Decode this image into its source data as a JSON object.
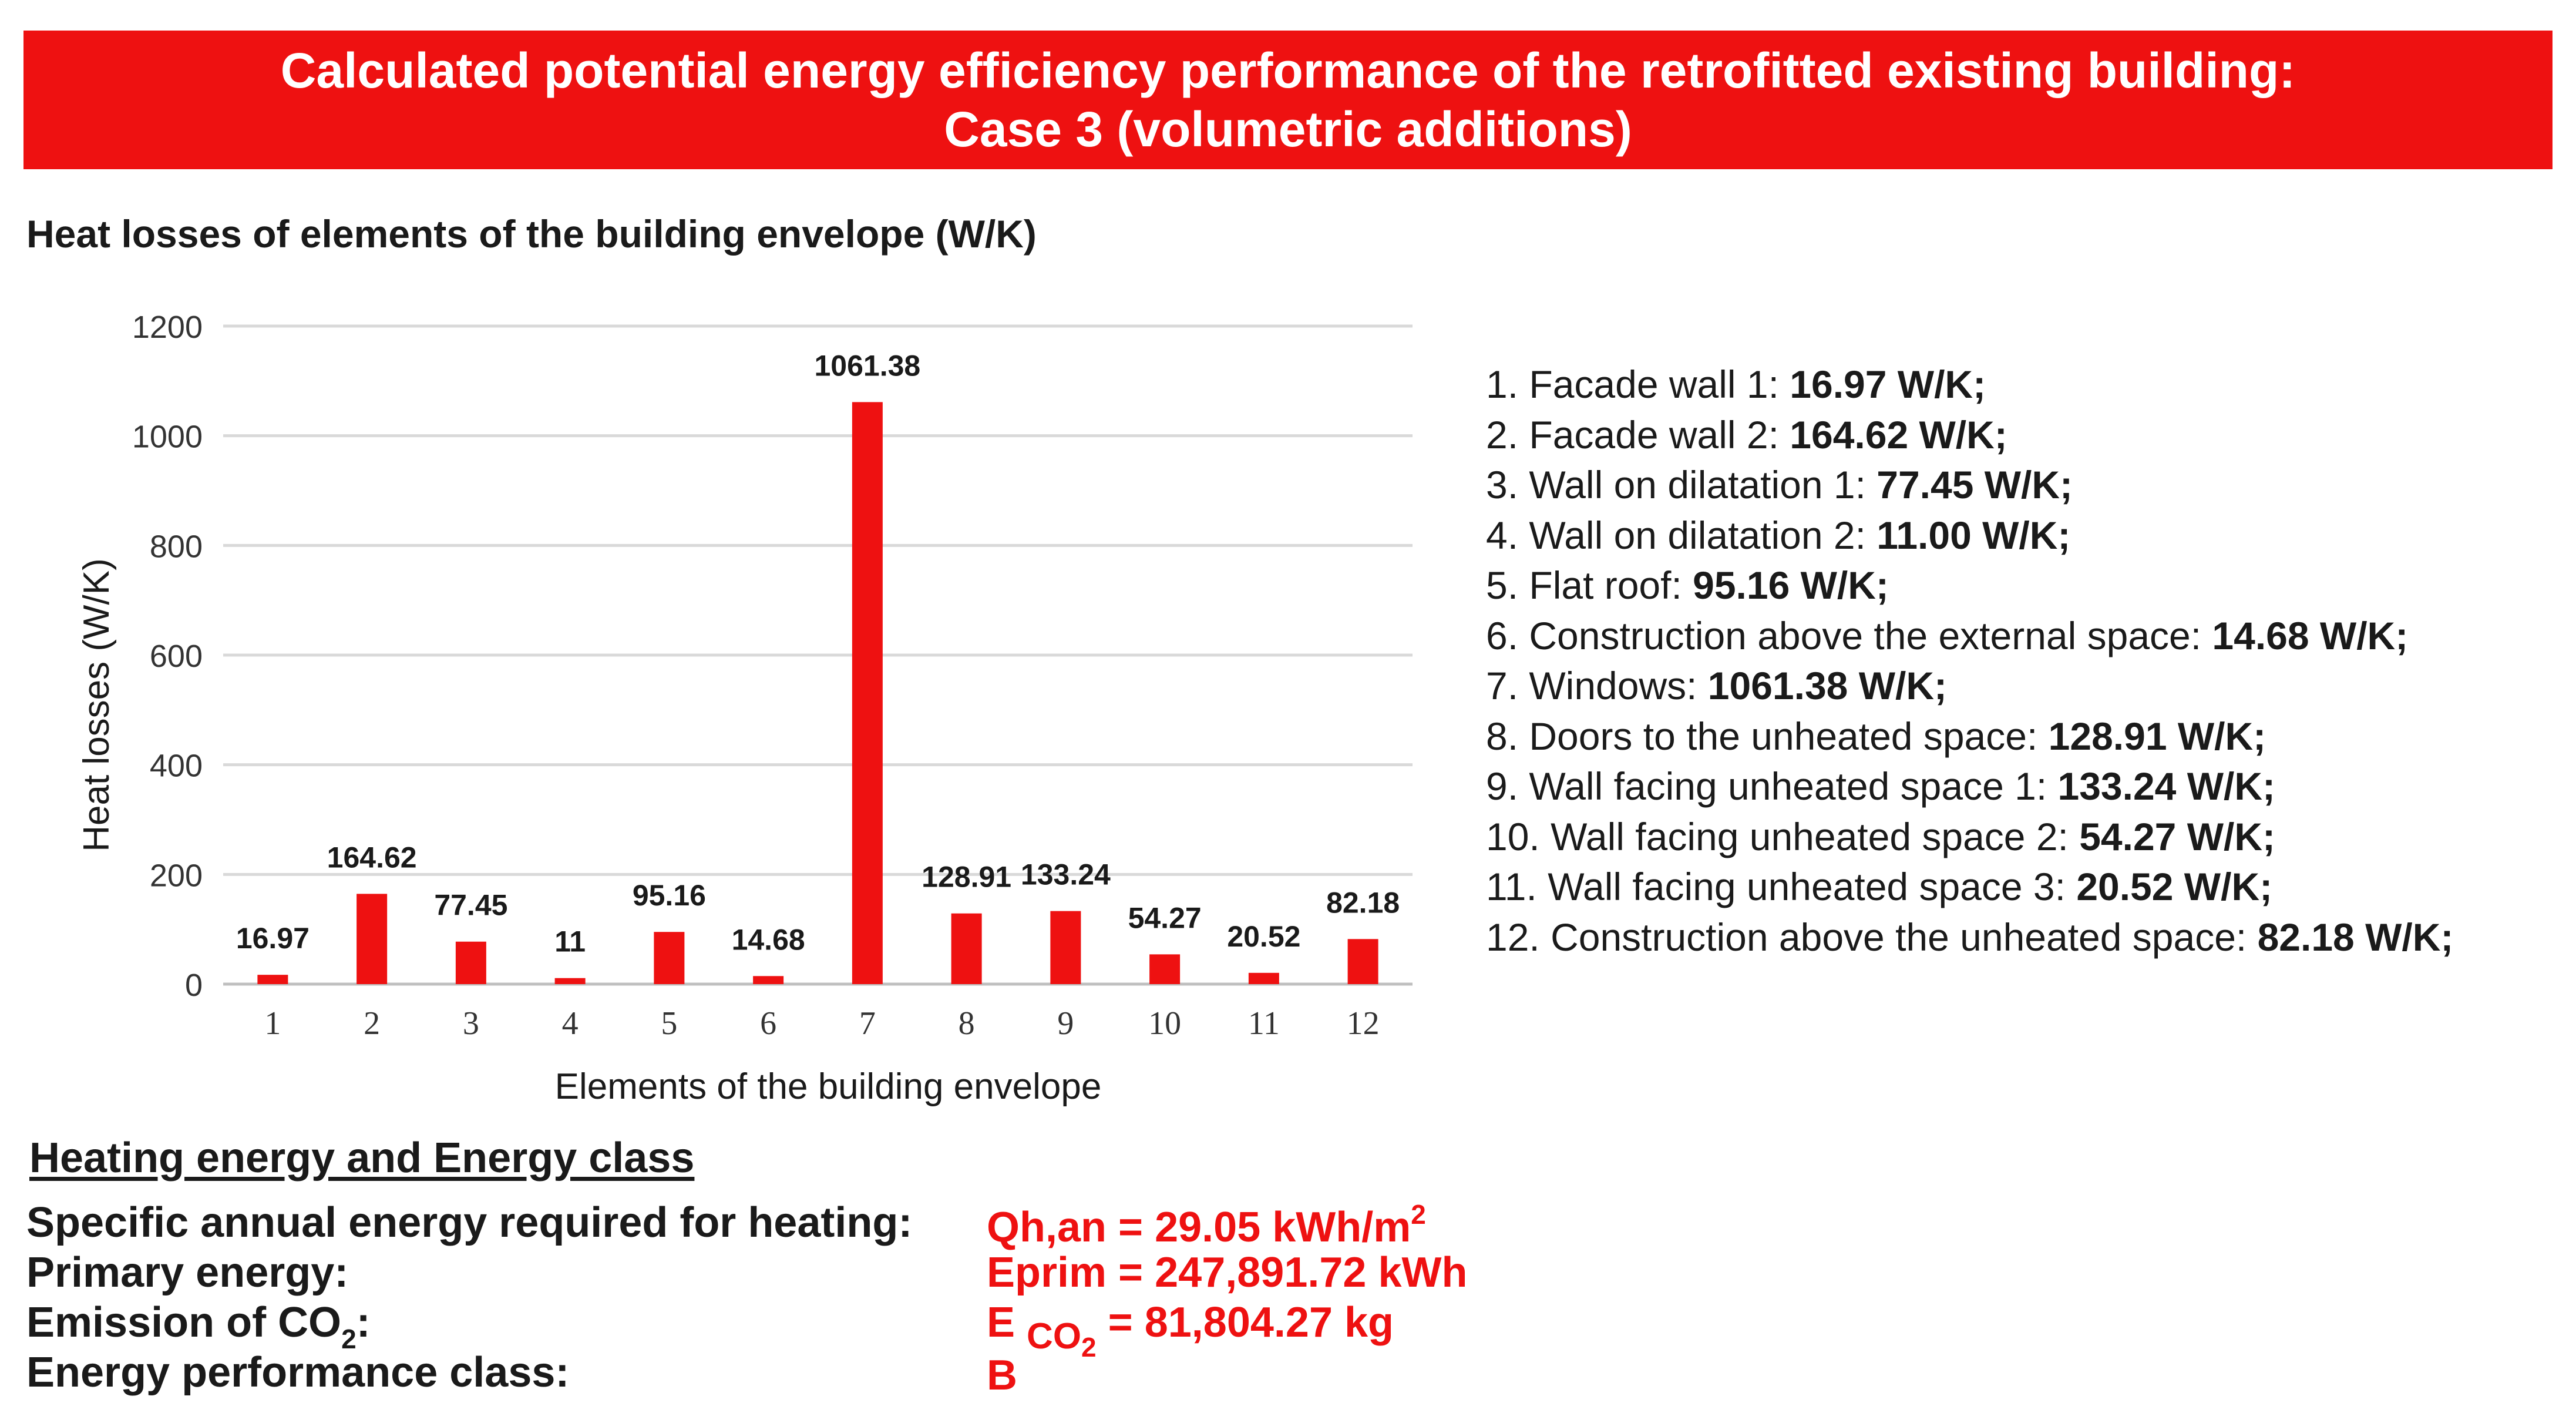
{
  "banner": {
    "line1": "Calculated potential energy efficiency performance of the retrofitted existing building:",
    "line2": "Case 3 (volumetric additions)"
  },
  "chart_section_title": "Heat losses of elements of the building envelope (W/K)",
  "chart_data": {
    "type": "bar",
    "title": "Heat losses of elements of the building envelope (W/K)",
    "xlabel": "Elements of the building envelope",
    "ylabel": "Heat losses (W/K)",
    "categories": [
      "1",
      "2",
      "3",
      "4",
      "5",
      "6",
      "7",
      "8",
      "9",
      "10",
      "11",
      "12"
    ],
    "values": [
      16.97,
      164.62,
      77.45,
      11,
      95.16,
      14.68,
      1061.38,
      128.91,
      133.24,
      54.27,
      20.52,
      82.18
    ],
    "data_labels": [
      "16.97",
      "164.62",
      "77.45",
      "11",
      "95.16",
      "14.68",
      "1061.38",
      "128.91",
      "133.24",
      "54.27",
      "20.52",
      "82.18"
    ],
    "ylim": [
      0,
      1200
    ],
    "yticks": [
      0,
      200,
      400,
      600,
      800,
      1000,
      1200
    ],
    "ytick_labels": [
      "0",
      "200",
      "400",
      "600",
      "800",
      "1000",
      "1200"
    ],
    "grid": true,
    "bar_color": "#ee1111"
  },
  "legend": [
    {
      "label": "1. Facade wall 1: ",
      "value": "16.97 W/K;"
    },
    {
      "label": "2. Facade wall 2: ",
      "value": "164.62 W/K;"
    },
    {
      "label": "3. Wall on dilatation 1: ",
      "value": "77.45 W/K;"
    },
    {
      "label": "4. Wall on dilatation 2: ",
      "value": "11.00 W/K;"
    },
    {
      "label": "5. Flat roof: ",
      "value": "95.16 W/K;"
    },
    {
      "label": "6. Construction above the external space: ",
      "value": "14.68 W/K;"
    },
    {
      "label": "7. Windows:  ",
      "value": "1061.38 W/K;"
    },
    {
      "label": "8. Doors to the unheated space: ",
      "value": "128.91 W/K;"
    },
    {
      "label": "9. Wall facing unheated space 1: ",
      "value": "133.24 W/K;"
    },
    {
      "label": "10. Wall facing unheated space 2: ",
      "value": "54.27 W/K;"
    },
    {
      "label": "11. Wall facing unheated space 3: ",
      "value": "20.52 W/K;"
    },
    {
      "label": "12. Construction above the unheated space: ",
      "value": "82.18 W/K;"
    }
  ],
  "energy": {
    "title": "Heating energy and Energy class",
    "heating_label": "Specific annual energy required for heating:",
    "heating_value": "Qh,an = 29.05 kWh/m",
    "heating_sup": "2",
    "primary_label": "Primary energy:",
    "primary_value": "Eprim = 247,891.72 kWh",
    "co2_label_pre": "Emission of CO",
    "co2_label_sub": "2",
    "co2_label_post": ":",
    "co2_value_e": "E",
    "co2_value_co": "CO",
    "co2_value_sub": "2",
    "co2_value_rest": " = 81,804.27 kg",
    "class_label": "Energy performance class:",
    "class_value": "B"
  },
  "colors": {
    "accent": "#ee1111",
    "text": "#1a1a1a",
    "grid": "#d9d9d9"
  }
}
